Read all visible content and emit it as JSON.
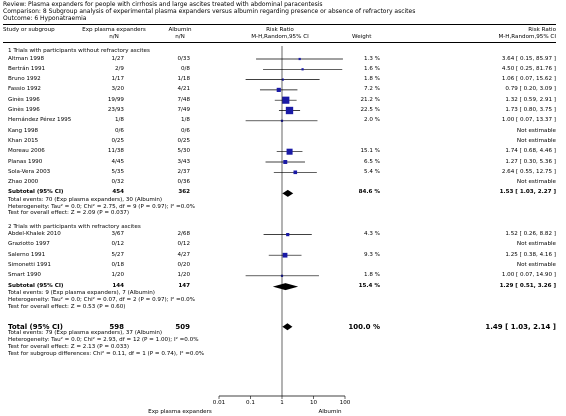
{
  "header": {
    "review": "Review:   Plasma expanders for people with cirrhosis and large ascites treated with abdominal paracentesis",
    "comparison": "Comparison:   8 Subgroup analysis of experimental plasma expanders versus albumin regarding presence or absence of refractory ascites",
    "outcome": "Outcome:   6 Hyponatraemia"
  },
  "columns": {
    "study": "Study or subgroup",
    "exp": "Exp plasma expanders",
    "alb": "Albumin",
    "n": "n/N",
    "rr": "Risk Ratio",
    "rr_sub": "M-H,Random,95% CI",
    "weight": "Weight",
    "rr2": "Risk Ratio",
    "rr2_sub": "M-H,Random,95% CI"
  },
  "axis": {
    "ticks": [
      "0.01",
      "0.1",
      "1",
      "10",
      "100"
    ],
    "left_label": "Exp plasma expanders",
    "right_label": "Albumin"
  },
  "chart_data": {
    "type": "forest",
    "scale": "log",
    "xlim": [
      0.01,
      100
    ],
    "null_line": 1,
    "subgroups": [
      {
        "title": "1 Trials with participants without refractory ascites",
        "studies": [
          {
            "name": "Altman 1998",
            "exp": "1/27",
            "alb": "0/33",
            "weight": "1.3 %",
            "ci_text": "3.64 [ 0.15, 85.97 ]",
            "rr": 3.64,
            "lo": 0.15,
            "hi": 85.97
          },
          {
            "name": "Bertrán 1991",
            "exp": "2/9",
            "alb": "0/8",
            "weight": "1.6 %",
            "ci_text": "4.50 [ 0.25, 81.76 ]",
            "rr": 4.5,
            "lo": 0.25,
            "hi": 81.76
          },
          {
            "name": "Bruno 1992",
            "exp": "1/17",
            "alb": "1/18",
            "weight": "1.8 %",
            "ci_text": "1.06 [ 0.07, 15.62 ]",
            "rr": 1.06,
            "lo": 0.07,
            "hi": 15.62
          },
          {
            "name": "Fassio 1992",
            "exp": "3/20",
            "alb": "4/21",
            "weight": "7.2 %",
            "ci_text": "0.79 [ 0.20, 3.09 ]",
            "rr": 0.79,
            "lo": 0.2,
            "hi": 3.09
          },
          {
            "name": "Ginès 1996",
            "exp": "19/99",
            "alb": "7/48",
            "weight": "21.2 %",
            "ci_text": "1.32 [ 0.59, 2.91 ]",
            "rr": 1.32,
            "lo": 0.59,
            "hi": 2.91
          },
          {
            "name": "Ginès 1996",
            "exp": "23/93",
            "alb": "7/49",
            "weight": "22.5 %",
            "ci_text": "1.73 [ 0.80, 3.75 ]",
            "rr": 1.73,
            "lo": 0.8,
            "hi": 3.75
          },
          {
            "name": "Hernández Pérez 1995",
            "exp": "1/8",
            "alb": "1/8",
            "weight": "2.0 %",
            "ci_text": "1.00 [ 0.07, 13.37 ]",
            "rr": 1.0,
            "lo": 0.07,
            "hi": 13.37
          },
          {
            "name": "Kang 1998",
            "exp": "0/6",
            "alb": "0/6",
            "weight": "",
            "ci_text": "Not estimable",
            "rr": null,
            "lo": null,
            "hi": null
          },
          {
            "name": "Khan 2015",
            "exp": "0/25",
            "alb": "0/25",
            "weight": "",
            "ci_text": "Not estimable",
            "rr": null,
            "lo": null,
            "hi": null
          },
          {
            "name": "Moreau 2006",
            "exp": "11/38",
            "alb": "5/30",
            "weight": "15.1 %",
            "ci_text": "1.74 [ 0.68, 4.46 ]",
            "rr": 1.74,
            "lo": 0.68,
            "hi": 4.46
          },
          {
            "name": "Planas 1990",
            "exp": "4/45",
            "alb": "3/43",
            "weight": "6.5 %",
            "ci_text": "1.27 [ 0.30, 5.36 ]",
            "rr": 1.27,
            "lo": 0.3,
            "hi": 5.36
          },
          {
            "name": "Sola-Vera 2003",
            "exp": "5/35",
            "alb": "2/37",
            "weight": "5.4 %",
            "ci_text": "2.64 [ 0.55, 12.75 ]",
            "rr": 2.64,
            "lo": 0.55,
            "hi": 12.75
          },
          {
            "name": "Zhao  2000",
            "exp": "0/32",
            "alb": "0/36",
            "weight": "",
            "ci_text": "Not estimable",
            "rr": null,
            "lo": null,
            "hi": null
          }
        ],
        "subtotal": {
          "label": "Subtotal (95% CI)",
          "exp_n": "454",
          "alb_n": "362",
          "weight": "84.6 %",
          "ci_text": "1.53 [ 1.03, 2.27 ]",
          "rr": 1.53,
          "lo": 1.03,
          "hi": 2.27
        },
        "stats": [
          "Total events: 70 (Exp plasma expanders), 30 (Albumin)",
          "Heterogeneity: Tau² = 0.0; Chi² = 2.75, df = 9 (P = 0.97); I² =0.0%",
          "Test for overall effect: Z = 2.09 (P = 0.037)"
        ]
      },
      {
        "title": "2 Trials with participants with refractory ascites",
        "studies": [
          {
            "name": "Abdel-Khalek 2010",
            "exp": "3/67",
            "alb": "2/68",
            "weight": "4.3 %",
            "ci_text": "1.52 [ 0.26, 8.82 ]",
            "rr": 1.52,
            "lo": 0.26,
            "hi": 8.82
          },
          {
            "name": "Graziotto 1997",
            "exp": "0/12",
            "alb": "0/12",
            "weight": "",
            "ci_text": "Not estimable",
            "rr": null,
            "lo": null,
            "hi": null
          },
          {
            "name": "Salerno 1991",
            "exp": "5/27",
            "alb": "4/27",
            "weight": "9.3 %",
            "ci_text": "1.25 [ 0.38, 4.16 ]",
            "rr": 1.25,
            "lo": 0.38,
            "hi": 4.16
          },
          {
            "name": "Simonetti 1991",
            "exp": "0/18",
            "alb": "0/20",
            "weight": "",
            "ci_text": "Not estimable",
            "rr": null,
            "lo": null,
            "hi": null
          },
          {
            "name": "Smart 1990",
            "exp": "1/20",
            "alb": "1/20",
            "weight": "1.8 %",
            "ci_text": "1.00 [ 0.07, 14.90 ]",
            "rr": 1.0,
            "lo": 0.07,
            "hi": 14.9
          }
        ],
        "subtotal": {
          "label": "Subtotal (95% CI)",
          "exp_n": "144",
          "alb_n": "147",
          "weight": "15.4 %",
          "ci_text": "1.29 [ 0.51, 3.26 ]",
          "rr": 1.29,
          "lo": 0.51,
          "hi": 3.26
        },
        "stats": [
          "Total events: 9 (Exp plasma expanders), 7 (Albumin)",
          "Heterogeneity: Tau² = 0.0; Chi² = 0.07, df = 2 (P = 0.97); I² =0.0%",
          "Test for overall effect: Z = 0.53 (P = 0.60)"
        ]
      }
    ],
    "total": {
      "label": "Total (95% CI)",
      "exp_n": "598",
      "alb_n": "509",
      "weight": "100.0 %",
      "ci_text": "1.49 [ 1.03, 2.14 ]",
      "rr": 1.49,
      "lo": 1.03,
      "hi": 2.14
    },
    "total_stats": [
      "Total events: 79 (Exp plasma expanders), 37 (Albumin)",
      "Heterogeneity: Tau² = 0.0; Chi² = 2.93, df = 12 (P = 1.00); I² =0.0%",
      "Test for overall effect: Z = 2.13 (P = 0.033)",
      "Test for subgroup differences: Chi² = 0.11, df = 1 (P = 0.74), I² =0.0%"
    ],
    "colors": {
      "study_marker": "#1a1aa6",
      "diamond": "#000000"
    }
  }
}
